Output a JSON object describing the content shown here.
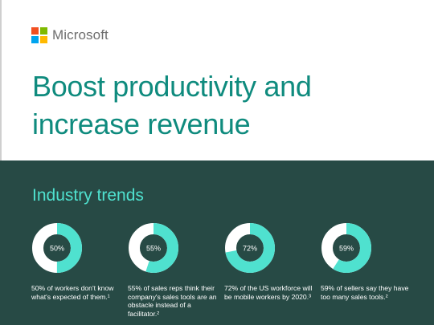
{
  "brand": {
    "name": "Microsoft",
    "logo_colors": [
      "#f25022",
      "#7fba00",
      "#00a4ef",
      "#ffb900"
    ]
  },
  "headline": {
    "line1": "Boost productivity and",
    "line2": "increase revenue"
  },
  "trends": {
    "title": "Industry trends",
    "items": [
      {
        "percent": 50,
        "label": "50%",
        "text": "50% of workers don't know what's expected of them.¹"
      },
      {
        "percent": 55,
        "label": "55%",
        "text": "55% of sales reps think their company's sales tools are an obstacle instead of a facilitator.²"
      },
      {
        "percent": 72,
        "label": "72%",
        "text": "72% of the US workforce will be mobile workers by 2020.³"
      },
      {
        "percent": 59,
        "label": "59%",
        "text": "59% of sellers say they have too many sales tools.²"
      }
    ]
  },
  "colors": {
    "accent": "#0f8b7e",
    "band": "#274a45",
    "ring_fill": "#4fe1cf",
    "ring_track": "#ffffff"
  }
}
